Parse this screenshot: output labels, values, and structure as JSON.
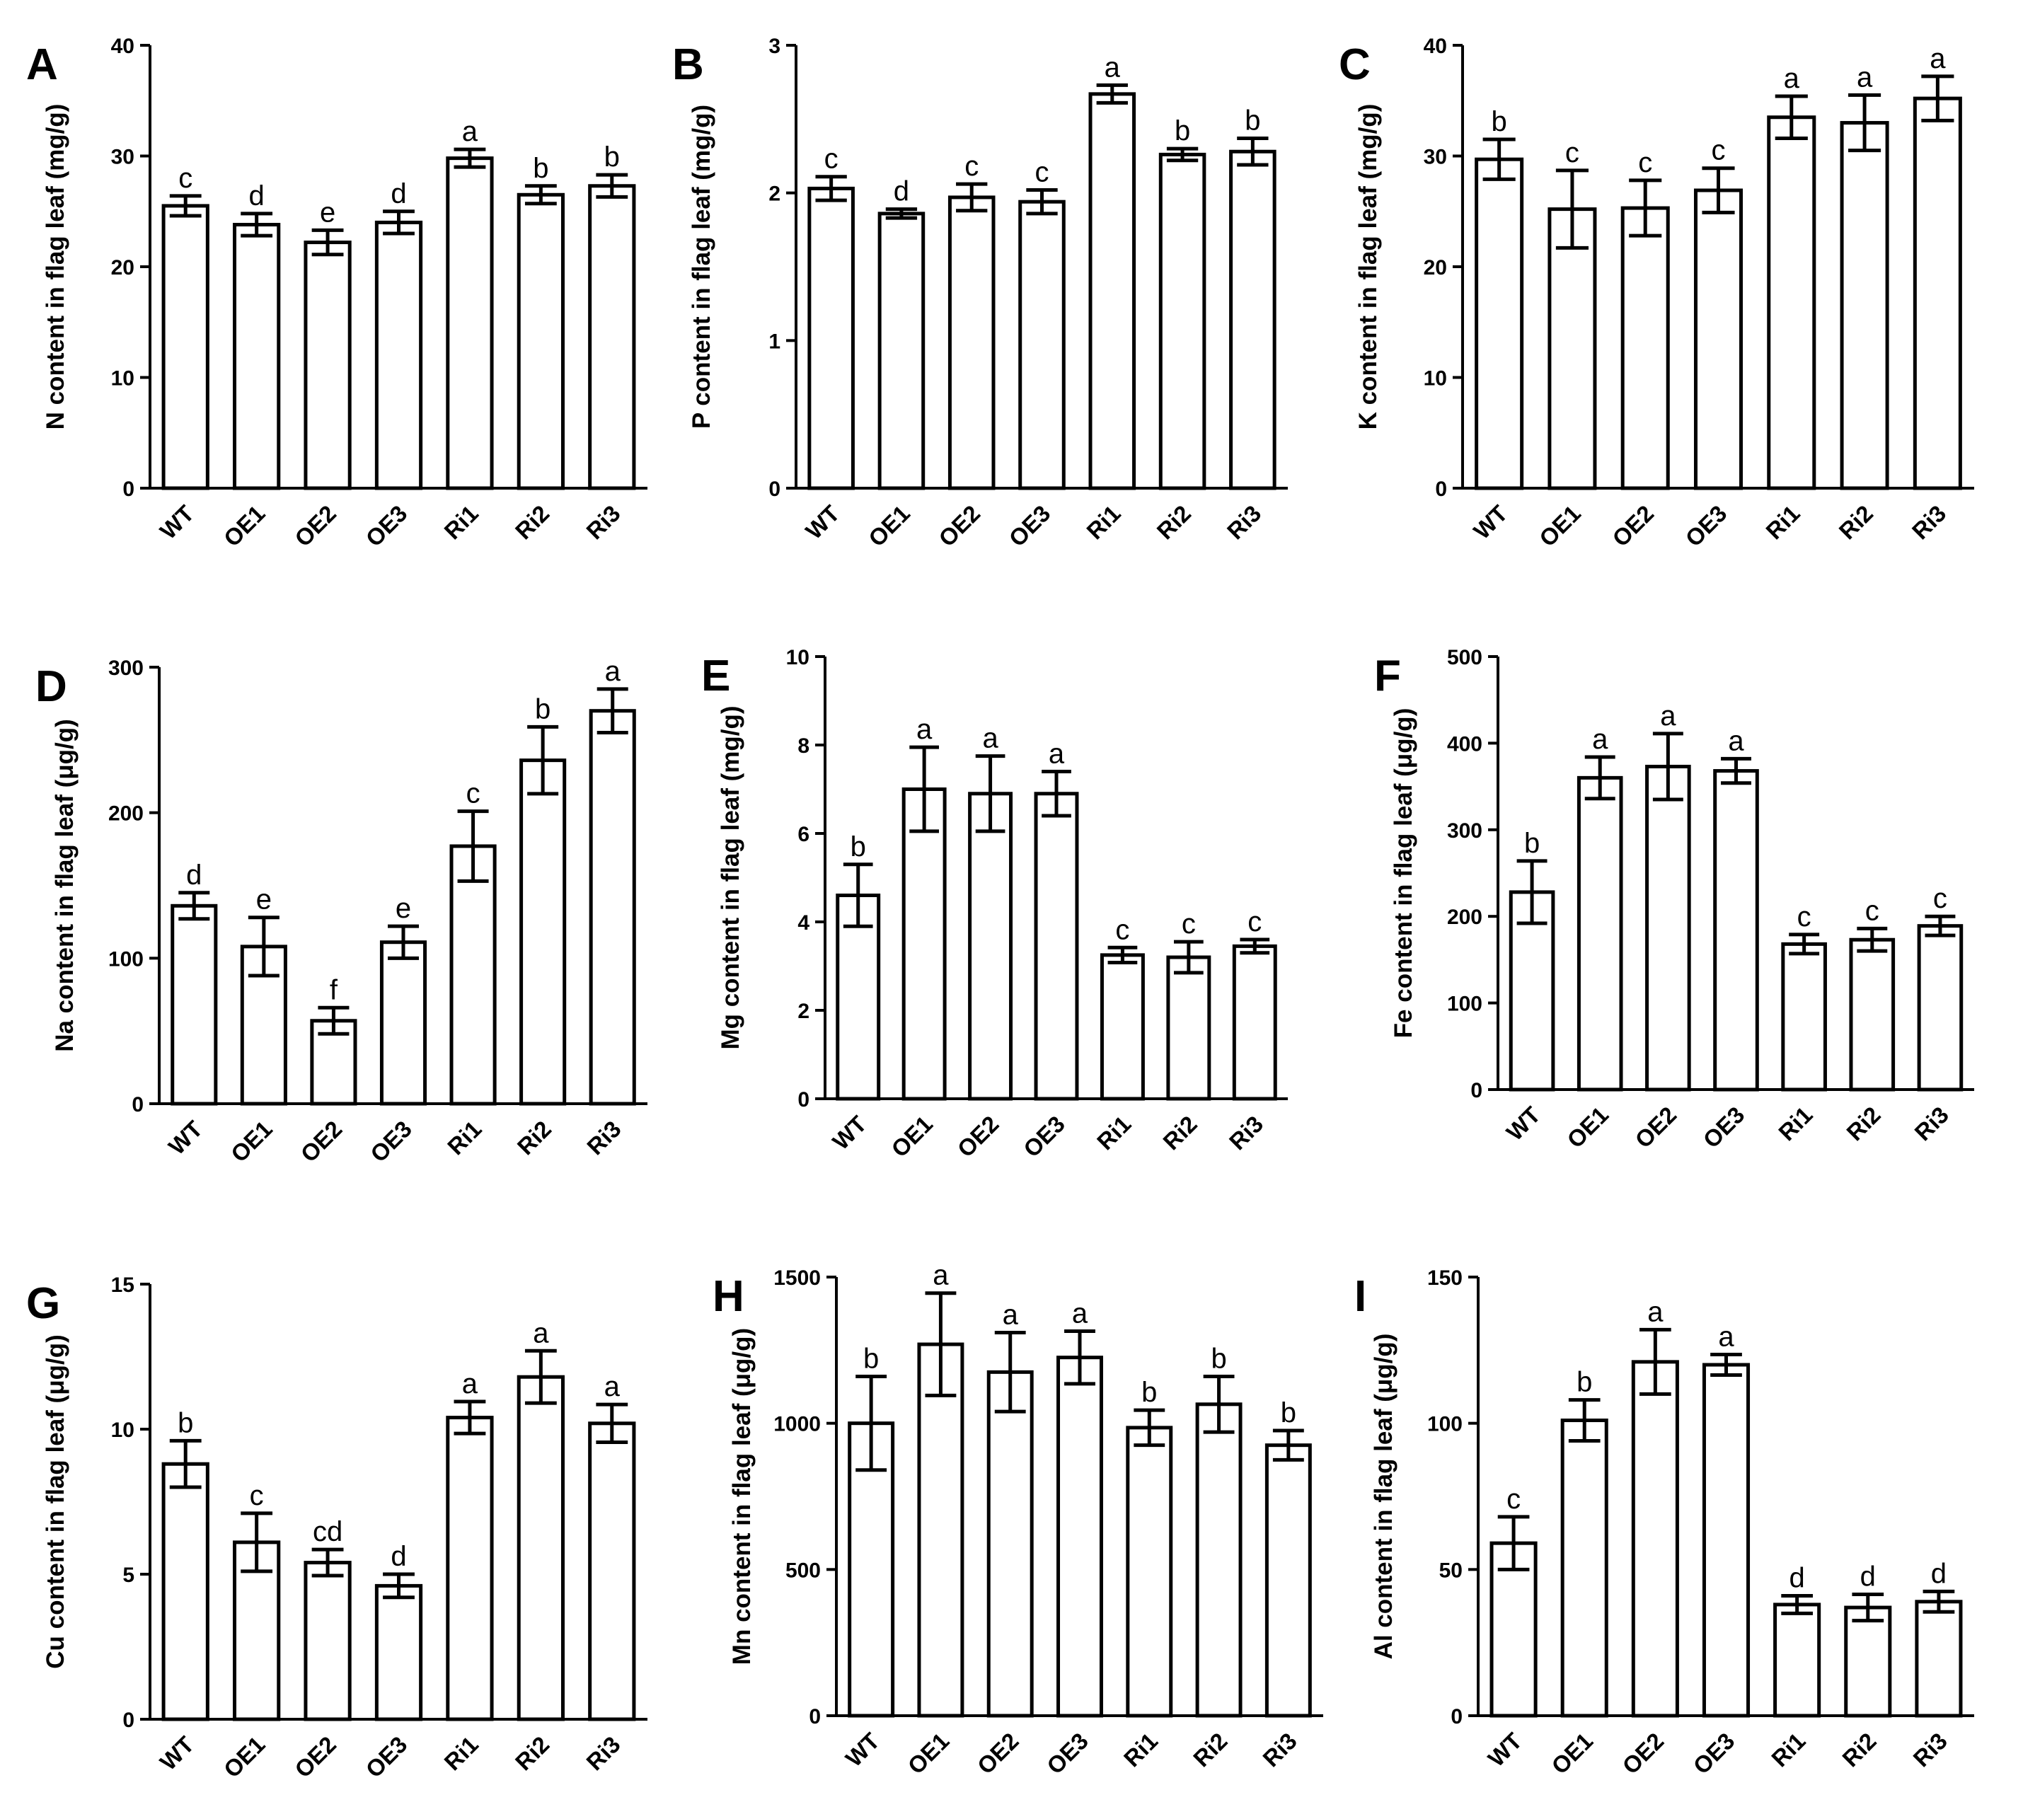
{
  "chart_data": [
    {
      "type": "bar",
      "panel": "A",
      "ylabel": "N content in flag leaf (mg/g)",
      "categories": [
        "WT",
        "OE1",
        "OE2",
        "OE3",
        "Ri1",
        "Ri2",
        "Ri3"
      ],
      "values": [
        25.5,
        23.8,
        22.2,
        24.0,
        29.8,
        26.5,
        27.3
      ],
      "errors": [
        0.9,
        1.0,
        1.1,
        1.0,
        0.8,
        0.8,
        1.0
      ],
      "letters": [
        "c",
        "d",
        "e",
        "d",
        "a",
        "b",
        "b"
      ],
      "ylim": [
        0,
        40
      ],
      "yticks": [
        "0",
        "10",
        "20",
        "30",
        "40"
      ]
    },
    {
      "type": "bar",
      "panel": "B",
      "ylabel": "P content in flag leaf (mg/g)",
      "categories": [
        "WT",
        "OE1",
        "OE2",
        "OE3",
        "Ri1",
        "Ri2",
        "Ri3"
      ],
      "values": [
        2.03,
        1.86,
        1.97,
        1.94,
        2.67,
        2.26,
        2.28
      ],
      "errors": [
        0.08,
        0.03,
        0.09,
        0.08,
        0.06,
        0.04,
        0.09
      ],
      "letters": [
        "c",
        "d",
        "c",
        "c",
        "a",
        "b",
        "b"
      ],
      "ylim": [
        0,
        3
      ],
      "yticks": [
        "0",
        "1",
        "2",
        "3"
      ]
    },
    {
      "type": "bar",
      "panel": "C",
      "ylabel": "K content in flag leaf (mg/g)",
      "categories": [
        "WT",
        "OE1",
        "OE2",
        "OE3",
        "Ri1",
        "Ri2",
        "Ri3"
      ],
      "values": [
        29.7,
        25.2,
        25.3,
        26.9,
        33.5,
        33.0,
        35.2
      ],
      "errors": [
        1.8,
        3.5,
        2.5,
        2.0,
        1.9,
        2.5,
        2.0
      ],
      "letters": [
        "b",
        "c",
        "c",
        "c",
        "a",
        "a",
        "a"
      ],
      "ylim": [
        0,
        40
      ],
      "yticks": [
        "0",
        "10",
        "20",
        "30",
        "40"
      ]
    },
    {
      "type": "bar",
      "panel": "D",
      "ylabel": "Na content in flag leaf (μg/g)",
      "categories": [
        "WT",
        "OE1",
        "OE2",
        "OE3",
        "Ri1",
        "Ri2",
        "Ri3"
      ],
      "values": [
        136,
        108,
        57,
        111,
        177,
        236,
        270
      ],
      "errors": [
        9,
        20,
        9,
        11,
        24,
        23,
        15
      ],
      "letters": [
        "d",
        "e",
        "f",
        "e",
        "c",
        "b",
        "a"
      ],
      "ylim": [
        0,
        300
      ],
      "yticks": [
        "0",
        "100",
        "200",
        "300"
      ]
    },
    {
      "type": "bar",
      "panel": "E",
      "ylabel": "Mg content in flag leaf (mg/g)",
      "categories": [
        "WT",
        "OE1",
        "OE2",
        "OE3",
        "Ri1",
        "Ri2",
        "Ri3"
      ],
      "values": [
        4.6,
        7.0,
        6.9,
        6.9,
        3.25,
        3.2,
        3.45
      ],
      "errors": [
        0.7,
        0.95,
        0.85,
        0.5,
        0.17,
        0.35,
        0.15
      ],
      "letters": [
        "b",
        "a",
        "a",
        "a",
        "c",
        "c",
        "c"
      ],
      "ylim": [
        0,
        10
      ],
      "yticks": [
        "0",
        "2",
        "4",
        "6",
        "8",
        "10"
      ]
    },
    {
      "type": "bar",
      "panel": "F",
      "ylabel": "Fe content in flag leaf (μg/g)",
      "categories": [
        "WT",
        "OE1",
        "OE2",
        "OE3",
        "Ri1",
        "Ri2",
        "Ri3"
      ],
      "values": [
        228,
        360,
        373,
        368,
        168,
        173,
        189
      ],
      "errors": [
        36,
        24,
        38,
        14,
        11,
        13,
        11
      ],
      "letters": [
        "b",
        "a",
        "a",
        "a",
        "c",
        "c",
        "c"
      ],
      "ylim": [
        0,
        500
      ],
      "yticks": [
        "0",
        "100",
        "200",
        "300",
        "400",
        "500"
      ]
    },
    {
      "type": "bar",
      "panel": "G",
      "ylabel": "Cu content in flag leaf (μg/g)",
      "categories": [
        "WT",
        "OE1",
        "OE2",
        "OE3",
        "Ri1",
        "Ri2",
        "Ri3"
      ],
      "values": [
        8.8,
        6.1,
        5.4,
        4.6,
        10.4,
        11.8,
        10.2
      ],
      "errors": [
        0.8,
        1.0,
        0.45,
        0.4,
        0.55,
        0.9,
        0.65
      ],
      "letters": [
        "b",
        "c",
        "cd",
        "d",
        "a",
        "a",
        "a"
      ],
      "ylim": [
        0,
        15
      ],
      "yticks": [
        "0",
        "5",
        "10",
        "15"
      ]
    },
    {
      "type": "bar",
      "panel": "H",
      "ylabel": "Mn content in flag leaf (μg/g)",
      "categories": [
        "WT",
        "OE1",
        "OE2",
        "OE3",
        "Ri1",
        "Ri2",
        "Ri3"
      ],
      "values": [
        1000,
        1270,
        1175,
        1225,
        985,
        1065,
        925
      ],
      "errors": [
        160,
        175,
        135,
        90,
        60,
        95,
        50
      ],
      "letters": [
        "b",
        "a",
        "a",
        "a",
        "b",
        "b",
        "b"
      ],
      "ylim": [
        0,
        1500
      ],
      "yticks": [
        "0",
        "500",
        "1000",
        "1500"
      ]
    },
    {
      "type": "bar",
      "panel": "I",
      "ylabel": "Al content in flag leaf (μg/g)",
      "categories": [
        "WT",
        "OE1",
        "OE2",
        "OE3",
        "Ri1",
        "Ri2",
        "Ri3"
      ],
      "values": [
        59,
        101,
        121,
        120,
        38,
        37,
        39
      ],
      "errors": [
        9,
        7,
        11,
        3.5,
        3,
        4.5,
        3.5
      ],
      "letters": [
        "c",
        "b",
        "a",
        "a",
        "d",
        "d",
        "d"
      ],
      "ylim": [
        0,
        150
      ],
      "yticks": [
        "0",
        "50",
        "100",
        "150"
      ]
    }
  ]
}
